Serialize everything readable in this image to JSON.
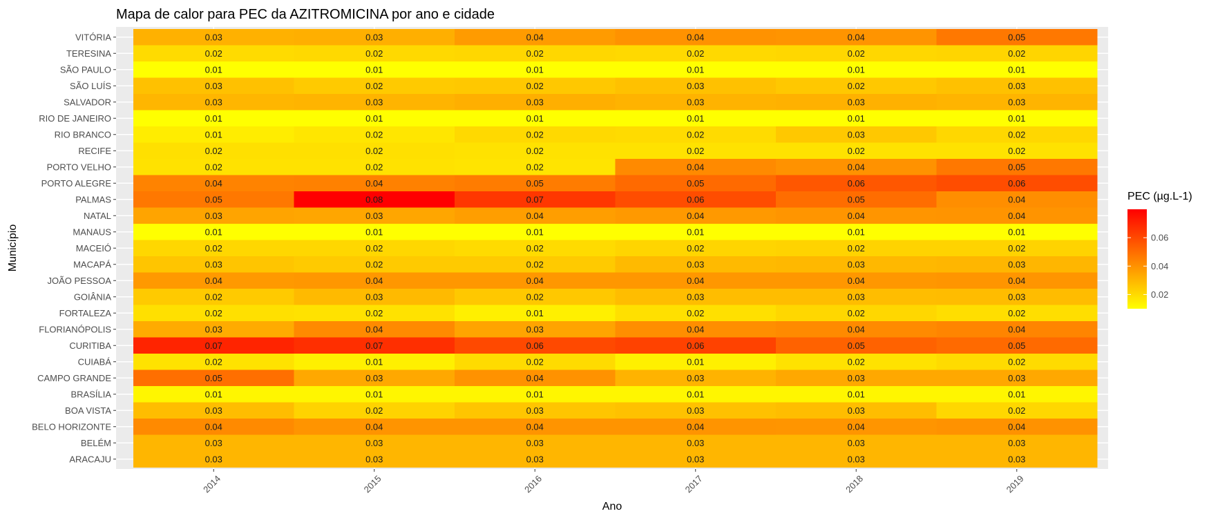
{
  "chart_data": {
    "type": "heatmap",
    "title": "Mapa de calor para PEC da AZITROMICINA por ano e cidade",
    "xlabel": "Ano",
    "ylabel": "Município",
    "x_categories": [
      "2014",
      "2015",
      "2016",
      "2017",
      "2018",
      "2019"
    ],
    "y_categories": [
      "VITÓRIA",
      "TERESINA",
      "SÃO PAULO",
      "SÃO LUÍS",
      "SALVADOR",
      "RIO DE JANEIRO",
      "RIO BRANCO",
      "RECIFE",
      "PORTO VELHO",
      "PORTO ALEGRE",
      "PALMAS",
      "NATAL",
      "MANAUS",
      "MACEIÓ",
      "MACAPÁ",
      "JOÃO PESSOA",
      "GOIÂNIA",
      "FORTALEZA",
      "FLORIANÓPOLIS",
      "CURITIBA",
      "CUIABÁ",
      "CAMPO GRANDE",
      "BRASÍLIA",
      "BOA VISTA",
      "BELO HORIZONTE",
      "BELÉM",
      "ARACAJU"
    ],
    "values": [
      [
        0.03,
        0.03,
        0.04,
        0.04,
        0.04,
        0.05
      ],
      [
        0.02,
        0.02,
        0.02,
        0.02,
        0.02,
        0.02
      ],
      [
        0.01,
        0.01,
        0.01,
        0.01,
        0.01,
        0.01
      ],
      [
        0.03,
        0.02,
        0.02,
        0.03,
        0.02,
        0.03
      ],
      [
        0.03,
        0.03,
        0.03,
        0.03,
        0.03,
        0.03
      ],
      [
        0.01,
        0.01,
        0.01,
        0.01,
        0.01,
        0.01
      ],
      [
        0.01,
        0.02,
        0.02,
        0.02,
        0.03,
        0.02
      ],
      [
        0.02,
        0.02,
        0.02,
        0.02,
        0.02,
        0.02
      ],
      [
        0.02,
        0.02,
        0.02,
        0.04,
        0.04,
        0.05
      ],
      [
        0.04,
        0.04,
        0.05,
        0.05,
        0.06,
        0.06
      ],
      [
        0.05,
        0.08,
        0.07,
        0.06,
        0.05,
        0.04
      ],
      [
        0.03,
        0.03,
        0.04,
        0.04,
        0.04,
        0.04
      ],
      [
        0.01,
        0.01,
        0.01,
        0.01,
        0.01,
        0.01
      ],
      [
        0.02,
        0.02,
        0.02,
        0.02,
        0.02,
        0.02
      ],
      [
        0.03,
        0.02,
        0.02,
        0.03,
        0.03,
        0.03
      ],
      [
        0.04,
        0.04,
        0.04,
        0.04,
        0.04,
        0.04
      ],
      [
        0.02,
        0.03,
        0.02,
        0.03,
        0.03,
        0.03
      ],
      [
        0.02,
        0.02,
        0.01,
        0.02,
        0.02,
        0.02
      ],
      [
        0.03,
        0.04,
        0.03,
        0.04,
        0.04,
        0.04
      ],
      [
        0.07,
        0.07,
        0.06,
        0.06,
        0.05,
        0.05
      ],
      [
        0.02,
        0.01,
        0.02,
        0.01,
        0.02,
        0.02
      ],
      [
        0.05,
        0.03,
        0.04,
        0.03,
        0.03,
        0.03
      ],
      [
        0.01,
        0.01,
        0.01,
        0.01,
        0.01,
        0.01
      ],
      [
        0.03,
        0.02,
        0.03,
        0.03,
        0.03,
        0.02
      ],
      [
        0.04,
        0.04,
        0.04,
        0.04,
        0.04,
        0.04
      ],
      [
        0.03,
        0.03,
        0.03,
        0.03,
        0.03,
        0.03
      ],
      [
        0.03,
        0.03,
        0.03,
        0.03,
        0.03,
        0.03
      ]
    ],
    "fill_values": [
      [
        0.0315,
        0.032,
        0.0375,
        0.04,
        0.0395,
        0.047
      ],
      [
        0.02,
        0.0205,
        0.021,
        0.0205,
        0.021,
        0.0215
      ],
      [
        0.01,
        0.01,
        0.01,
        0.01,
        0.01,
        0.01
      ],
      [
        0.027,
        0.0245,
        0.025,
        0.027,
        0.025,
        0.027
      ],
      [
        0.03,
        0.0305,
        0.032,
        0.031,
        0.0315,
        0.0305
      ],
      [
        0.01,
        0.01,
        0.01,
        0.01,
        0.01,
        0.01
      ],
      [
        0.015,
        0.017,
        0.0205,
        0.02,
        0.025,
        0.021
      ],
      [
        0.0185,
        0.0185,
        0.018,
        0.018,
        0.018,
        0.018
      ],
      [
        0.018,
        0.018,
        0.0175,
        0.042,
        0.04,
        0.047
      ],
      [
        0.044,
        0.0445,
        0.046,
        0.051,
        0.056,
        0.059
      ],
      [
        0.047,
        0.081,
        0.065,
        0.059,
        0.05,
        0.041
      ],
      [
        0.035,
        0.0345,
        0.0365,
        0.038,
        0.039,
        0.0395
      ],
      [
        0.01,
        0.01,
        0.01,
        0.01,
        0.01,
        0.01
      ],
      [
        0.021,
        0.021,
        0.02,
        0.0215,
        0.022,
        0.022
      ],
      [
        0.026,
        0.0245,
        0.0245,
        0.029,
        0.0295,
        0.03
      ],
      [
        0.038,
        0.0385,
        0.0385,
        0.0385,
        0.0385,
        0.039
      ],
      [
        0.0245,
        0.029,
        0.025,
        0.028,
        0.028,
        0.0285
      ],
      [
        0.0185,
        0.018,
        0.014,
        0.0185,
        0.021,
        0.019
      ],
      [
        0.033,
        0.042,
        0.035,
        0.041,
        0.042,
        0.0435
      ],
      [
        0.07,
        0.067,
        0.06,
        0.062,
        0.053,
        0.051
      ],
      [
        0.018,
        0.014,
        0.02,
        0.014,
        0.018,
        0.02
      ],
      [
        0.0495,
        0.034,
        0.04,
        0.031,
        0.034,
        0.034
      ],
      [
        0.0125,
        0.0125,
        0.0125,
        0.0125,
        0.0125,
        0.0125
      ],
      [
        0.028,
        0.022,
        0.026,
        0.027,
        0.028,
        0.021
      ],
      [
        0.042,
        0.0395,
        0.0395,
        0.0395,
        0.039,
        0.04
      ],
      [
        0.03,
        0.03,
        0.03,
        0.03,
        0.03,
        0.03
      ],
      [
        0.03,
        0.03,
        0.03,
        0.03,
        0.03,
        0.03
      ]
    ],
    "legend": {
      "title": "PEC (µg.L-1)",
      "ticks": [
        "0.02",
        "0.04",
        "0.06"
      ],
      "tick_values": [
        0.02,
        0.04,
        0.06
      ],
      "range": [
        0.01,
        0.08
      ],
      "color_low": "#FFFF00",
      "color_high": "#FF0000",
      "placement": "right"
    },
    "panel_background": "#EBEBEB",
    "grid": true
  }
}
